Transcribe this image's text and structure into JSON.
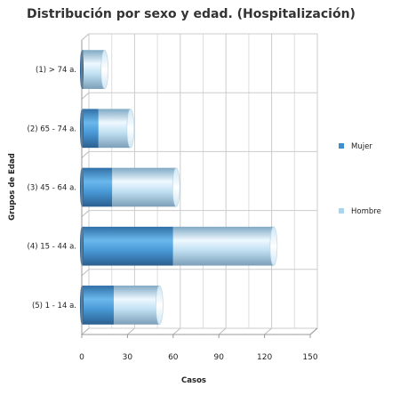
{
  "chart_data": {
    "type": "bar",
    "orientation": "horizontal",
    "stacked": true,
    "title": "Distribución por sexo y edad. (Hospitalización)",
    "xlabel": "Casos",
    "ylabel": "Grupos de Edad",
    "categories": [
      "(1) > 74 a.",
      "(2) 65 - 74 a.",
      "(3) 45 - 64 a.",
      "(4) 15 - 44 a.",
      "(5) 1 - 14 a."
    ],
    "series": [
      {
        "name": "Mujer",
        "values": [
          1,
          11,
          20,
          60,
          21
        ],
        "color": "#3d8fd1"
      },
      {
        "name": "Hombre",
        "values": [
          14,
          21,
          42,
          66,
          30
        ],
        "color": "#a9d4ef"
      }
    ],
    "xlim": [
      0,
      150
    ],
    "xticks": [
      0,
      30,
      60,
      90,
      120,
      150
    ],
    "grid": true,
    "legend_position": "right"
  }
}
